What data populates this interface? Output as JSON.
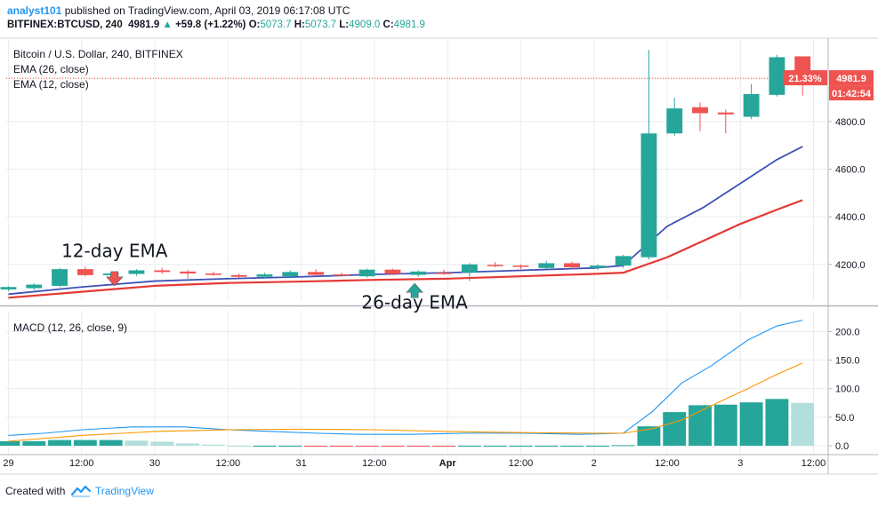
{
  "header": {
    "author": "analyst101",
    "published_text": "published on TradingView.com, April 03, 2019 06:17:08 UTC",
    "symbol": "BITFINEX:BTCUSD, 240",
    "last_price": "4981.9",
    "change": "+59.8 (+1.22%)",
    "open_label": "O:",
    "open": "5073.7",
    "high_label": "H:",
    "high": "5073.7",
    "low_label": "L:",
    "low": "4909.0",
    "close_label": "C:",
    "close": "4981.9"
  },
  "footer": {
    "created_with": "Created with",
    "brand": "TradingView"
  },
  "colors": {
    "up": "#26a69a",
    "down": "#ef5350",
    "ema26": "#3f51b5",
    "ema12": "#e53935",
    "macd": "#2196f3",
    "signal": "#ff9800",
    "hist_pos_strong": "#26a69a",
    "hist_pos_weak": "#b2dfdb",
    "hist_neg_weak": "#ffcdd2",
    "hist_neg_strong": "#ef5350",
    "grid": "#e9ecef",
    "price_line": "#e53935"
  },
  "chart_data": [
    {
      "type": "candlestick",
      "pane": "price",
      "title": "Bitcoin / U.S. Dollar, 240, BITFINEX",
      "indicators": [
        "EMA (26, close)",
        "EMA (12, close)"
      ],
      "ylim": [
        4050,
        5150
      ],
      "y_ticks": [
        4200,
        4400,
        4600,
        4800
      ],
      "y_tick_labels": [
        "4200.0",
        "4400.0",
        "4600.0",
        "4800.0"
      ],
      "x_ticks": [
        0,
        10,
        20,
        30,
        40,
        50,
        60,
        70,
        80,
        90,
        100,
        110
      ],
      "x_tick_labels": [
        "29",
        "12:00",
        "30",
        "12:00",
        "31",
        "12:00",
        "Apr",
        "12:00",
        "2",
        "12:00",
        "3",
        "12:00"
      ],
      "xlim": [
        -0.3,
        112
      ],
      "last_price_label": "4981.9",
      "percent_label": "21.33%",
      "countdown_label": "01:42:54",
      "candles": [
        {
          "x": 0,
          "o": 4095,
          "h": 4108,
          "l": 4088,
          "c": 4105
        },
        {
          "x": 3.5,
          "o": 4100,
          "h": 4120,
          "l": 4092,
          "c": 4115
        },
        {
          "x": 7,
          "o": 4110,
          "h": 4185,
          "l": 4105,
          "c": 4180
        },
        {
          "x": 10.5,
          "o": 4180,
          "h": 4190,
          "l": 4150,
          "c": 4155
        },
        {
          "x": 14,
          "o": 4155,
          "h": 4168,
          "l": 4148,
          "c": 4162
        },
        {
          "x": 17.5,
          "o": 4160,
          "h": 4180,
          "l": 4152,
          "c": 4175
        },
        {
          "x": 21,
          "o": 4175,
          "h": 4185,
          "l": 4160,
          "c": 4168
        },
        {
          "x": 24.5,
          "o": 4170,
          "h": 4178,
          "l": 4140,
          "c": 4162
        },
        {
          "x": 28,
          "o": 4162,
          "h": 4170,
          "l": 4152,
          "c": 4156
        },
        {
          "x": 31.5,
          "o": 4155,
          "h": 4162,
          "l": 4144,
          "c": 4148
        },
        {
          "x": 35,
          "o": 4148,
          "h": 4165,
          "l": 4140,
          "c": 4158
        },
        {
          "x": 38.5,
          "o": 4150,
          "h": 4175,
          "l": 4145,
          "c": 4168
        },
        {
          "x": 42,
          "o": 4168,
          "h": 4180,
          "l": 4152,
          "c": 4156
        },
        {
          "x": 45.5,
          "o": 4158,
          "h": 4165,
          "l": 4150,
          "c": 4154
        },
        {
          "x": 49,
          "o": 4150,
          "h": 4182,
          "l": 4145,
          "c": 4178
        },
        {
          "x": 52.5,
          "o": 4178,
          "h": 4182,
          "l": 4155,
          "c": 4160
        },
        {
          "x": 56,
          "o": 4156,
          "h": 4175,
          "l": 4148,
          "c": 4170
        },
        {
          "x": 59.5,
          "o": 4165,
          "h": 4178,
          "l": 4155,
          "c": 4160
        },
        {
          "x": 63,
          "o": 4165,
          "h": 4205,
          "l": 4130,
          "c": 4200
        },
        {
          "x": 66.5,
          "o": 4198,
          "h": 4210,
          "l": 4188,
          "c": 4195
        },
        {
          "x": 70,
          "o": 4195,
          "h": 4200,
          "l": 4180,
          "c": 4190
        },
        {
          "x": 73.5,
          "o": 4185,
          "h": 4215,
          "l": 4180,
          "c": 4205
        },
        {
          "x": 77,
          "o": 4205,
          "h": 4212,
          "l": 4180,
          "c": 4188
        },
        {
          "x": 80.5,
          "o": 4185,
          "h": 4200,
          "l": 4178,
          "c": 4195
        },
        {
          "x": 84,
          "o": 4195,
          "h": 4240,
          "l": 4185,
          "c": 4235
        },
        {
          "x": 87.5,
          "o": 4230,
          "h": 5100,
          "l": 4220,
          "c": 4750
        },
        {
          "x": 91,
          "o": 4750,
          "h": 4900,
          "l": 4740,
          "c": 4855
        },
        {
          "x": 94.5,
          "o": 4860,
          "h": 4880,
          "l": 4760,
          "c": 4835
        },
        {
          "x": 98,
          "o": 4838,
          "h": 4850,
          "l": 4750,
          "c": 4830
        },
        {
          "x": 101.5,
          "o": 4820,
          "h": 4958,
          "l": 4810,
          "c": 4915
        },
        {
          "x": 105,
          "o": 4912,
          "h": 5080,
          "l": 4905,
          "c": 5070
        },
        {
          "x": 108.5,
          "o": 5073.7,
          "h": 5073.7,
          "l": 4909,
          "c": 4981.9
        }
      ],
      "series": [
        {
          "name": "EMA (26, close)",
          "color": "#3f51b5",
          "x": [
            0,
            10,
            20,
            30,
            40,
            50,
            60,
            70,
            80,
            84,
            90,
            95,
            100,
            105,
            108.5
          ],
          "values": [
            4075,
            4105,
            4130,
            4140,
            4148,
            4158,
            4165,
            4175,
            4185,
            4195,
            4360,
            4440,
            4540,
            4640,
            4695
          ]
        },
        {
          "name": "EMA (12, close)",
          "color": "#e53935",
          "x": [
            0,
            10,
            20,
            30,
            40,
            50,
            60,
            70,
            80,
            84,
            90,
            95,
            100,
            105,
            108.5
          ],
          "values": [
            4060,
            4085,
            4110,
            4122,
            4128,
            4135,
            4140,
            4150,
            4160,
            4165,
            4230,
            4300,
            4370,
            4430,
            4470
          ]
        }
      ],
      "annotations": [
        {
          "text": "12-day EMA",
          "x": 14.5,
          "y": 4230,
          "arrow": "down",
          "arrow_x": 14.5,
          "arrow_y": 4125,
          "color": "#ef5350"
        },
        {
          "text": "26-day EMA",
          "x": 55.5,
          "y": 4015,
          "arrow": "up",
          "arrow_x": 55.5,
          "arrow_y": 4105,
          "color": "#26a69a"
        }
      ]
    },
    {
      "type": "macd",
      "pane": "indicator",
      "title": "MACD (12, 26, close, 9)",
      "ylim": [
        -14,
        235
      ],
      "y_ticks": [
        0,
        50,
        100,
        150,
        200
      ],
      "y_tick_labels": [
        "0.0",
        "50.0",
        "100.0",
        "150.0",
        "200.0"
      ],
      "series": [
        {
          "name": "MACD",
          "color": "#2196f3",
          "x": [
            0,
            5,
            10,
            17,
            24,
            30,
            36,
            42,
            48,
            55,
            63,
            70,
            78,
            84,
            88,
            92,
            96,
            101,
            105,
            108.5
          ],
          "values": [
            18,
            22,
            28,
            33,
            33,
            28,
            25,
            22,
            20,
            20,
            22,
            22,
            20,
            22,
            60,
            110,
            140,
            185,
            210,
            220
          ]
        },
        {
          "name": "Signal",
          "color": "#ff9800",
          "x": [
            0,
            10,
            20,
            30,
            40,
            50,
            60,
            70,
            80,
            84,
            88,
            92,
            96,
            101,
            105,
            108.5
          ],
          "values": [
            8,
            18,
            25,
            28,
            29,
            28,
            25,
            23,
            22,
            22,
            30,
            45,
            70,
            100,
            125,
            145
          ]
        }
      ],
      "histogram": {
        "x": [
          0,
          3.5,
          7,
          10.5,
          14,
          17.5,
          21,
          24.5,
          28,
          31.5,
          35,
          38.5,
          42,
          45.5,
          49,
          52.5,
          56,
          59.5,
          63,
          66.5,
          70,
          73.5,
          77,
          80.5,
          84,
          87.5,
          91,
          94.5,
          98,
          101.5,
          105,
          108.5
        ],
        "values": [
          8,
          8,
          10,
          10,
          10,
          9,
          7,
          4,
          2,
          0,
          0,
          0,
          -1,
          -1,
          -1,
          -1,
          -1,
          -1,
          0,
          0,
          0,
          0,
          0,
          0,
          1,
          34,
          59,
          71,
          72,
          76,
          82,
          75
        ]
      }
    }
  ]
}
